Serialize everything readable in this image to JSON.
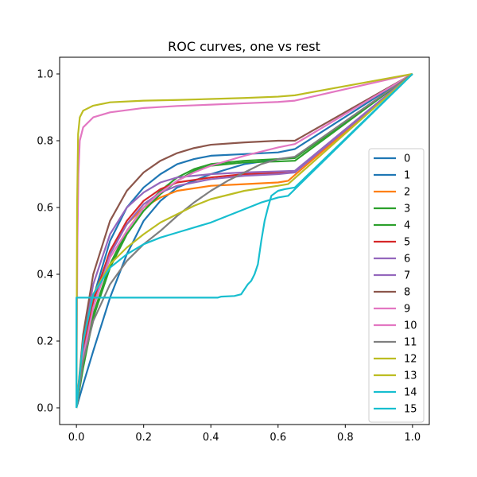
{
  "chart_data": {
    "type": "line",
    "title": "ROC curves, one vs rest",
    "xlabel": "",
    "ylabel": "",
    "xlim": [
      -0.05,
      1.05
    ],
    "ylim": [
      -0.05,
      1.05
    ],
    "x_ticks": [
      "0.0",
      "0.2",
      "0.4",
      "0.6",
      "0.8",
      "1.0"
    ],
    "y_ticks": [
      "0.0",
      "0.2",
      "0.4",
      "0.6",
      "0.8",
      "1.0"
    ],
    "grid": false,
    "legend_position": "right",
    "series": [
      {
        "name": "0",
        "color": "#1f77b4",
        "points": [
          [
            0,
            0
          ],
          [
            0.02,
            0.14
          ],
          [
            0.05,
            0.33
          ],
          [
            0.1,
            0.5
          ],
          [
            0.15,
            0.6
          ],
          [
            0.2,
            0.66
          ],
          [
            0.25,
            0.7
          ],
          [
            0.3,
            0.73
          ],
          [
            0.35,
            0.745
          ],
          [
            0.4,
            0.755
          ],
          [
            0.5,
            0.76
          ],
          [
            0.6,
            0.765
          ],
          [
            0.65,
            0.775
          ],
          [
            1,
            1
          ]
        ]
      },
      {
        "name": "1",
        "color": "#1f77b4",
        "points": [
          [
            0,
            0
          ],
          [
            0.02,
            0.07
          ],
          [
            0.05,
            0.17
          ],
          [
            0.1,
            0.33
          ],
          [
            0.15,
            0.46
          ],
          [
            0.2,
            0.56
          ],
          [
            0.25,
            0.62
          ],
          [
            0.3,
            0.66
          ],
          [
            0.4,
            0.7
          ],
          [
            0.5,
            0.73
          ],
          [
            0.6,
            0.745
          ],
          [
            0.65,
            0.75
          ],
          [
            1,
            1
          ]
        ]
      },
      {
        "name": "2",
        "color": "#ff7f0e",
        "points": [
          [
            0,
            0
          ],
          [
            0.02,
            0.18
          ],
          [
            0.05,
            0.32
          ],
          [
            0.1,
            0.47
          ],
          [
            0.15,
            0.55
          ],
          [
            0.2,
            0.6
          ],
          [
            0.25,
            0.63
          ],
          [
            0.3,
            0.65
          ],
          [
            0.4,
            0.665
          ],
          [
            0.5,
            0.67
          ],
          [
            0.6,
            0.675
          ],
          [
            0.63,
            0.68
          ],
          [
            1,
            1
          ]
        ]
      },
      {
        "name": "3",
        "color": "#2ca02c",
        "points": [
          [
            0,
            0
          ],
          [
            0.02,
            0.12
          ],
          [
            0.05,
            0.27
          ],
          [
            0.1,
            0.42
          ],
          [
            0.15,
            0.52
          ],
          [
            0.2,
            0.59
          ],
          [
            0.25,
            0.64
          ],
          [
            0.3,
            0.68
          ],
          [
            0.35,
            0.71
          ],
          [
            0.4,
            0.725
          ],
          [
            0.5,
            0.735
          ],
          [
            0.6,
            0.738
          ],
          [
            0.65,
            0.74
          ],
          [
            1,
            1
          ]
        ]
      },
      {
        "name": "4",
        "color": "#2ca02c",
        "points": [
          [
            0,
            0
          ],
          [
            0.02,
            0.13
          ],
          [
            0.05,
            0.28
          ],
          [
            0.1,
            0.43
          ],
          [
            0.15,
            0.53
          ],
          [
            0.2,
            0.6
          ],
          [
            0.25,
            0.65
          ],
          [
            0.3,
            0.69
          ],
          [
            0.35,
            0.715
          ],
          [
            0.4,
            0.73
          ],
          [
            0.5,
            0.74
          ],
          [
            0.6,
            0.745
          ],
          [
            0.65,
            0.748
          ],
          [
            1,
            1
          ]
        ]
      },
      {
        "name": "5",
        "color": "#d62728",
        "points": [
          [
            0,
            0
          ],
          [
            0.02,
            0.17
          ],
          [
            0.05,
            0.32
          ],
          [
            0.1,
            0.47
          ],
          [
            0.15,
            0.56
          ],
          [
            0.2,
            0.62
          ],
          [
            0.25,
            0.655
          ],
          [
            0.3,
            0.675
          ],
          [
            0.4,
            0.69
          ],
          [
            0.5,
            0.7
          ],
          [
            0.6,
            0.703
          ],
          [
            0.65,
            0.705
          ],
          [
            1,
            1
          ]
        ]
      },
      {
        "name": "6",
        "color": "#9467bd",
        "points": [
          [
            0,
            0
          ],
          [
            0.02,
            0.16
          ],
          [
            0.05,
            0.3
          ],
          [
            0.1,
            0.46
          ],
          [
            0.15,
            0.55
          ],
          [
            0.2,
            0.61
          ],
          [
            0.25,
            0.645
          ],
          [
            0.3,
            0.665
          ],
          [
            0.4,
            0.685
          ],
          [
            0.5,
            0.695
          ],
          [
            0.6,
            0.7
          ],
          [
            0.65,
            0.705
          ],
          [
            1,
            1
          ]
        ]
      },
      {
        "name": "7",
        "color": "#9467bd",
        "points": [
          [
            0,
            0
          ],
          [
            0.02,
            0.2
          ],
          [
            0.05,
            0.37
          ],
          [
            0.1,
            0.52
          ],
          [
            0.15,
            0.6
          ],
          [
            0.2,
            0.645
          ],
          [
            0.25,
            0.675
          ],
          [
            0.3,
            0.69
          ],
          [
            0.4,
            0.7
          ],
          [
            0.5,
            0.705
          ],
          [
            0.6,
            0.708
          ],
          [
            0.65,
            0.71
          ],
          [
            1,
            1
          ]
        ]
      },
      {
        "name": "8",
        "color": "#8c564b",
        "points": [
          [
            0,
            0
          ],
          [
            0.02,
            0.22
          ],
          [
            0.05,
            0.4
          ],
          [
            0.1,
            0.56
          ],
          [
            0.15,
            0.65
          ],
          [
            0.2,
            0.705
          ],
          [
            0.25,
            0.74
          ],
          [
            0.3,
            0.763
          ],
          [
            0.35,
            0.778
          ],
          [
            0.4,
            0.788
          ],
          [
            0.5,
            0.795
          ],
          [
            0.6,
            0.8
          ],
          [
            0.65,
            0.8
          ],
          [
            1,
            1
          ]
        ]
      },
      {
        "name": "9",
        "color": "#e377c2",
        "points": [
          [
            0,
            0
          ],
          [
            0.02,
            0.15
          ],
          [
            0.05,
            0.3
          ],
          [
            0.1,
            0.45
          ],
          [
            0.15,
            0.53
          ],
          [
            0.2,
            0.6
          ],
          [
            0.25,
            0.645
          ],
          [
            0.3,
            0.68
          ],
          [
            0.35,
            0.705
          ],
          [
            0.4,
            0.725
          ],
          [
            0.5,
            0.755
          ],
          [
            0.6,
            0.78
          ],
          [
            0.65,
            0.79
          ],
          [
            1,
            1
          ]
        ]
      },
      {
        "name": "10",
        "color": "#e377c2",
        "points": [
          [
            0,
            0
          ],
          [
            0.003,
            0.5
          ],
          [
            0.006,
            0.7
          ],
          [
            0.01,
            0.8
          ],
          [
            0.02,
            0.84
          ],
          [
            0.05,
            0.87
          ],
          [
            0.1,
            0.885
          ],
          [
            0.2,
            0.898
          ],
          [
            0.3,
            0.904
          ],
          [
            0.4,
            0.908
          ],
          [
            0.5,
            0.912
          ],
          [
            0.6,
            0.916
          ],
          [
            0.65,
            0.92
          ],
          [
            1,
            1
          ]
        ]
      },
      {
        "name": "11",
        "color": "#7f7f7f",
        "points": [
          [
            0,
            0
          ],
          [
            0.02,
            0.14
          ],
          [
            0.05,
            0.26
          ],
          [
            0.1,
            0.37
          ],
          [
            0.15,
            0.44
          ],
          [
            0.2,
            0.49
          ],
          [
            0.25,
            0.53
          ],
          [
            0.3,
            0.575
          ],
          [
            0.35,
            0.615
          ],
          [
            0.4,
            0.65
          ],
          [
            0.45,
            0.68
          ],
          [
            0.5,
            0.705
          ],
          [
            0.55,
            0.73
          ],
          [
            0.6,
            0.745
          ],
          [
            0.65,
            0.752
          ],
          [
            1,
            1
          ]
        ]
      },
      {
        "name": "12",
        "color": "#bcbd22",
        "points": [
          [
            0,
            0
          ],
          [
            0.02,
            0.2
          ],
          [
            0.05,
            0.34
          ],
          [
            0.1,
            0.43
          ],
          [
            0.15,
            0.48
          ],
          [
            0.2,
            0.52
          ],
          [
            0.25,
            0.555
          ],
          [
            0.3,
            0.58
          ],
          [
            0.35,
            0.605
          ],
          [
            0.4,
            0.625
          ],
          [
            0.5,
            0.65
          ],
          [
            0.6,
            0.665
          ],
          [
            0.63,
            0.67
          ],
          [
            1,
            1
          ]
        ]
      },
      {
        "name": "13",
        "color": "#bcbd22",
        "points": [
          [
            0,
            0
          ],
          [
            0.002,
            0.6
          ],
          [
            0.005,
            0.82
          ],
          [
            0.01,
            0.87
          ],
          [
            0.02,
            0.89
          ],
          [
            0.05,
            0.905
          ],
          [
            0.1,
            0.915
          ],
          [
            0.2,
            0.92
          ],
          [
            0.3,
            0.922
          ],
          [
            0.4,
            0.925
          ],
          [
            0.5,
            0.928
          ],
          [
            0.6,
            0.932
          ],
          [
            0.65,
            0.936
          ],
          [
            1,
            1
          ]
        ]
      },
      {
        "name": "14",
        "color": "#17becf",
        "points": [
          [
            0,
            0
          ],
          [
            0.02,
            0.2
          ],
          [
            0.05,
            0.34
          ],
          [
            0.1,
            0.42
          ],
          [
            0.15,
            0.46
          ],
          [
            0.2,
            0.49
          ],
          [
            0.25,
            0.51
          ],
          [
            0.3,
            0.525
          ],
          [
            0.35,
            0.54
          ],
          [
            0.4,
            0.555
          ],
          [
            0.45,
            0.575
          ],
          [
            0.5,
            0.595
          ],
          [
            0.55,
            0.615
          ],
          [
            0.6,
            0.63
          ],
          [
            0.63,
            0.635
          ],
          [
            1,
            1
          ]
        ]
      },
      {
        "name": "15",
        "color": "#17becf",
        "points": [
          [
            0,
            0
          ],
          [
            0,
            0.33
          ],
          [
            0.2,
            0.33
          ],
          [
            0.42,
            0.33
          ],
          [
            0.43,
            0.333
          ],
          [
            0.47,
            0.335
          ],
          [
            0.49,
            0.34
          ],
          [
            0.5,
            0.355
          ],
          [
            0.51,
            0.37
          ],
          [
            0.52,
            0.38
          ],
          [
            0.53,
            0.4
          ],
          [
            0.54,
            0.43
          ],
          [
            0.55,
            0.5
          ],
          [
            0.56,
            0.56
          ],
          [
            0.57,
            0.6
          ],
          [
            0.58,
            0.635
          ],
          [
            0.6,
            0.65
          ],
          [
            0.62,
            0.655
          ],
          [
            0.65,
            0.66
          ],
          [
            1,
            1
          ]
        ]
      }
    ]
  }
}
